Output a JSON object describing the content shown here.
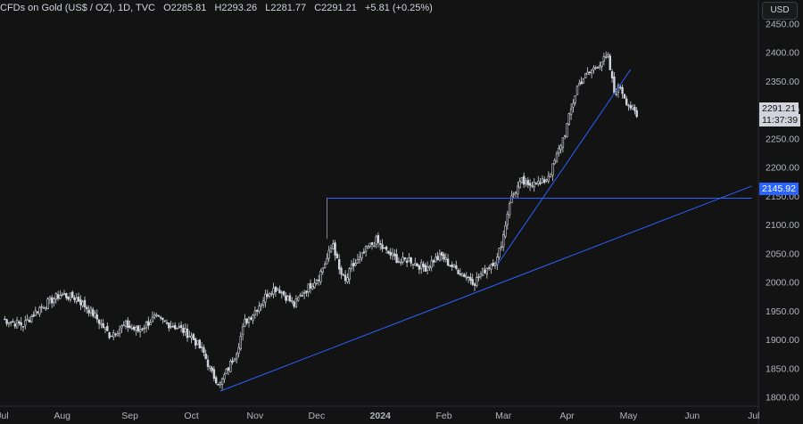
{
  "header": {
    "title": "CFDs on Gold (US$ / OZ), 1D, TVC",
    "open": "O2285.81",
    "high": "H2293.26",
    "low": "L2281.77",
    "close": "C2291.21",
    "change": "+5.81 (+0.25%)"
  },
  "currency_button": "USD",
  "price_tags": {
    "last_price": "2291.21",
    "countdown": "11:37:39",
    "level": "2145.92"
  },
  "colors": {
    "background": "#131313",
    "candle_up": "#d1d4dc",
    "candle_down": "#d1d4dc",
    "line": "#2962ff",
    "axis_text": "#b2b5be"
  },
  "chart_data": {
    "type": "candlestick",
    "instrument": "CFDs on Gold (US$ / OZ)",
    "interval": "1D",
    "source": "TVC",
    "ylim": [
      1790,
      2460
    ],
    "y_ticks": [
      1800,
      1850,
      1900,
      1950,
      2000,
      2050,
      2100,
      2150,
      2200,
      2250,
      2300,
      2350,
      2400,
      2450
    ],
    "y_tick_labels": [
      "1800.00",
      "1850.00",
      "1900.00",
      "1950.00",
      "2000.00",
      "2050.00",
      "2100.00",
      "2150.00",
      "2200.00",
      "2250.00",
      "2300.00",
      "2350.00",
      "2400.00",
      "2450.00"
    ],
    "x_labels": [
      "Jul",
      "Aug",
      "Sep",
      "Oct",
      "Nov",
      "Dec",
      "2024",
      "Feb",
      "Mar",
      "Apr",
      "May",
      "Jun",
      "Jul"
    ],
    "anchors": [
      [
        0,
        1935
      ],
      [
        10,
        1925
      ],
      [
        18,
        1955
      ],
      [
        28,
        1978
      ],
      [
        36,
        1972
      ],
      [
        44,
        1945
      ],
      [
        52,
        1908
      ],
      [
        60,
        1925
      ],
      [
        66,
        1915
      ],
      [
        74,
        1938
      ],
      [
        80,
        1928
      ],
      [
        86,
        1920
      ],
      [
        92,
        1905
      ],
      [
        98,
        1876
      ],
      [
        102,
        1840
      ],
      [
        106,
        1822
      ],
      [
        110,
        1850
      ],
      [
        114,
        1880
      ],
      [
        118,
        1930
      ],
      [
        122,
        1945
      ],
      [
        126,
        1965
      ],
      [
        130,
        1985
      ],
      [
        134,
        1990
      ],
      [
        138,
        1975
      ],
      [
        142,
        1960
      ],
      [
        146,
        1980
      ],
      [
        150,
        1995
      ],
      [
        154,
        2010
      ],
      [
        158,
        2040
      ],
      [
        161,
        2068
      ],
      [
        164,
        2020
      ],
      [
        167,
        2000
      ],
      [
        170,
        2025
      ],
      [
        174,
        2040
      ],
      [
        178,
        2060
      ],
      [
        182,
        2072
      ],
      [
        186,
        2055
      ],
      [
        190,
        2045
      ],
      [
        194,
        2035
      ],
      [
        198,
        2040
      ],
      [
        202,
        2030
      ],
      [
        206,
        2025
      ],
      [
        210,
        2038
      ],
      [
        214,
        2045
      ],
      [
        218,
        2030
      ],
      [
        222,
        2020
      ],
      [
        226,
        2010
      ],
      [
        230,
        2000
      ],
      [
        234,
        2018
      ],
      [
        238,
        2032
      ],
      [
        241,
        2040
      ],
      [
        244,
        2082
      ],
      [
        247,
        2140
      ],
      [
        250,
        2160
      ],
      [
        253,
        2175
      ],
      [
        256,
        2165
      ],
      [
        259,
        2178
      ],
      [
        262,
        2170
      ],
      [
        265,
        2180
      ],
      [
        268,
        2200
      ],
      [
        271,
        2230
      ],
      [
        274,
        2260
      ],
      [
        277,
        2300
      ],
      [
        280,
        2340
      ],
      [
        283,
        2355
      ],
      [
        286,
        2365
      ],
      [
        289,
        2375
      ],
      [
        292,
        2385
      ],
      [
        295,
        2390
      ],
      [
        298,
        2330
      ],
      [
        301,
        2340
      ],
      [
        304,
        2315
      ],
      [
        307,
        2300
      ],
      [
        309,
        2288
      ]
    ],
    "lines": [
      {
        "name": "support-trendline",
        "from": [
          106,
          1810
        ],
        "to": [
          365,
          2167
        ]
      },
      {
        "name": "march-trendline",
        "from": [
          241,
          2030
        ],
        "to": [
          306,
          2370
        ]
      },
      {
        "name": "horizontal-level",
        "y": 2145.92,
        "from_x": 158,
        "to_x": 365
      }
    ]
  }
}
